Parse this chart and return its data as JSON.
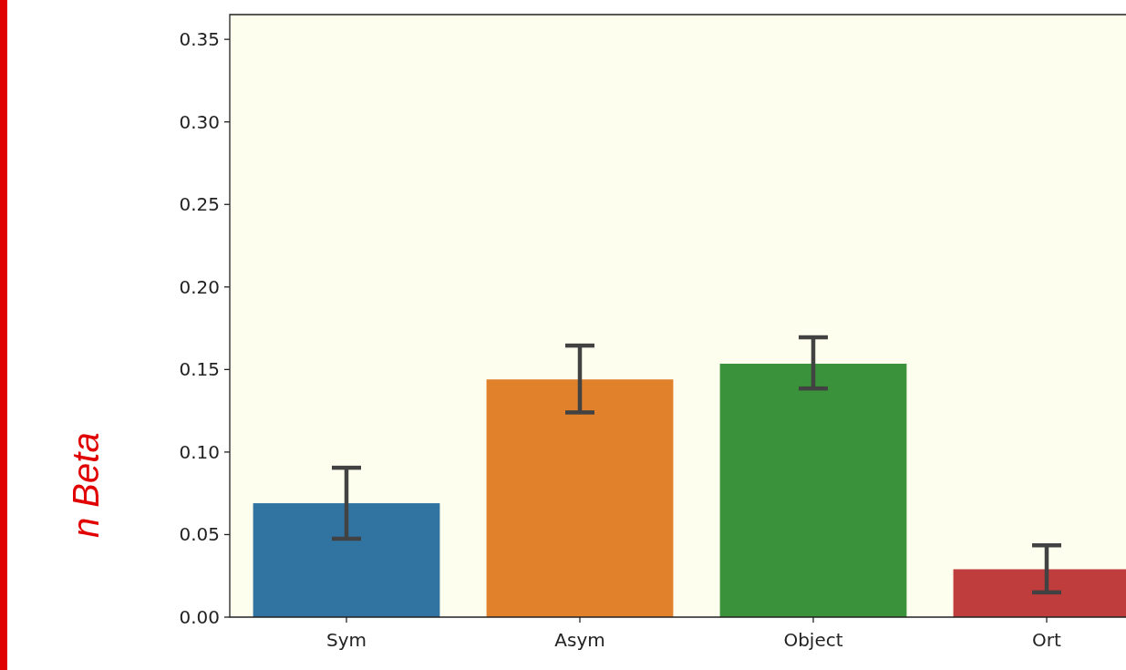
{
  "chart_data": {
    "type": "bar",
    "ylabel": "n Beta",
    "categories": [
      "Sym",
      "Asym",
      "Object",
      "Ort"
    ],
    "values": [
      0.069,
      0.144,
      0.1535,
      0.029
    ],
    "colors": [
      "#3274a1",
      "#e1812c",
      "#3a923a",
      "#c03d3e"
    ],
    "errors": [
      [
        0.0475,
        0.0905
      ],
      [
        0.124,
        0.1645
      ],
      [
        0.1385,
        0.1695
      ],
      [
        0.015,
        0.0435
      ]
    ],
    "ylim": [
      0,
      0.365
    ],
    "yticks": [
      {
        "value": 0,
        "label": "0.00"
      },
      {
        "value": 0.05,
        "label": "0.05"
      },
      {
        "value": 0.1,
        "label": "0.10"
      },
      {
        "value": 0.15,
        "label": "0.15"
      },
      {
        "value": 0.2,
        "label": "0.20"
      },
      {
        "value": 0.25,
        "label": "0.25"
      },
      {
        "value": 0.3,
        "label": "0.30"
      },
      {
        "value": 0.35,
        "label": "0.35"
      }
    ]
  }
}
